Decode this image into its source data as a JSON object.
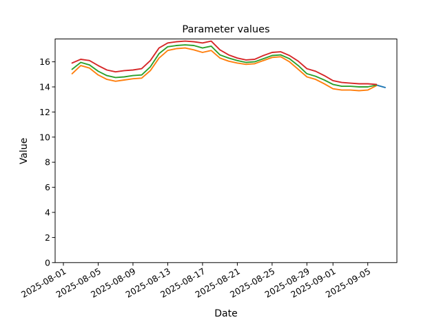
{
  "chart_data": {
    "type": "line",
    "title": "Parameter values",
    "xlabel": "Date",
    "ylabel": "Value",
    "grid": false,
    "legend": "none",
    "ylim": [
      0,
      17.82
    ],
    "xlim_days_from_2025_08_01": [
      -0.95,
      38.35
    ],
    "y_ticks": [
      0,
      2,
      4,
      6,
      8,
      10,
      12,
      14,
      16
    ],
    "x_ticks": [
      "2025-08-01",
      "2025-08-05",
      "2025-08-09",
      "2025-08-13",
      "2025-08-17",
      "2025-08-21",
      "2025-08-25",
      "2025-08-29",
      "2025-09-01",
      "2025-09-05"
    ],
    "dates": [
      "2025-08-02",
      "2025-08-03",
      "2025-08-04",
      "2025-08-05",
      "2025-08-06",
      "2025-08-07",
      "2025-08-08",
      "2025-08-09",
      "2025-08-10",
      "2025-08-11",
      "2025-08-12",
      "2025-08-13",
      "2025-08-14",
      "2025-08-15",
      "2025-08-16",
      "2025-08-17",
      "2025-08-18",
      "2025-08-19",
      "2025-08-20",
      "2025-08-21",
      "2025-08-22",
      "2025-08-23",
      "2025-08-24",
      "2025-08-25",
      "2025-08-26",
      "2025-08-27",
      "2025-08-28",
      "2025-08-29",
      "2025-08-30",
      "2025-08-31",
      "2025-09-01",
      "2025-09-02",
      "2025-09-03",
      "2025-09-04",
      "2025-09-05",
      "2025-09-06"
    ],
    "series": [
      {
        "name": "blue",
        "color": "#1f77b4",
        "dates": [
          "2025-09-06",
          "2025-09-07"
        ],
        "values": [
          14.15,
          13.95
        ]
      },
      {
        "name": "orange",
        "color": "#ff7f0e",
        "values": [
          15.05,
          15.7,
          15.5,
          14.95,
          14.6,
          14.45,
          14.55,
          14.65,
          14.7,
          15.3,
          16.3,
          16.9,
          17.05,
          17.1,
          16.95,
          16.75,
          16.9,
          16.3,
          16.05,
          15.9,
          15.8,
          15.85,
          16.1,
          16.35,
          16.4,
          16.0,
          15.4,
          14.8,
          14.6,
          14.25,
          13.85,
          13.75,
          13.75,
          13.7,
          13.75,
          14.1
        ]
      },
      {
        "name": "green",
        "color": "#2ca02c",
        "values": [
          15.4,
          15.95,
          15.75,
          15.25,
          14.9,
          14.75,
          14.8,
          14.9,
          14.95,
          15.6,
          16.65,
          17.2,
          17.3,
          17.35,
          17.3,
          17.1,
          17.25,
          16.55,
          16.3,
          16.1,
          15.95,
          16.0,
          16.25,
          16.5,
          16.55,
          16.25,
          15.7,
          15.05,
          14.85,
          14.55,
          14.2,
          14.05,
          14.05,
          14.0,
          14.0,
          14.15
        ]
      },
      {
        "name": "red",
        "color": "#d62728",
        "values": [
          15.9,
          16.2,
          16.1,
          15.7,
          15.35,
          15.2,
          15.3,
          15.35,
          15.45,
          16.1,
          17.1,
          17.5,
          17.6,
          17.65,
          17.6,
          17.5,
          17.65,
          16.95,
          16.55,
          16.3,
          16.15,
          16.2,
          16.5,
          16.75,
          16.8,
          16.5,
          16.05,
          15.45,
          15.25,
          14.9,
          14.5,
          14.35,
          14.3,
          14.25,
          14.25,
          14.2
        ]
      }
    ]
  }
}
